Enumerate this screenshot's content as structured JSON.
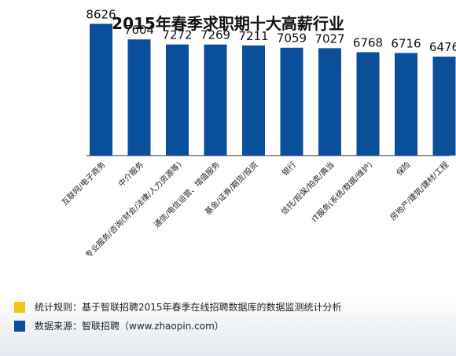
{
  "chart_data": {
    "type": "bar",
    "title": "2015年春季求职期十大高薪行业",
    "categories": [
      "互联网/电子商务",
      "中介服务",
      "专业服务/咨询(财会/法律/人力资源等)",
      "通信/电信运营、增值服务",
      "基金/证券/期货/投资",
      "银行",
      "信托/担保/拍卖/典当",
      "IT服务(系统/数据/维护)",
      "保险",
      "房地产/建筑/建材/工程"
    ],
    "values": [
      8626,
      7604,
      7272,
      7269,
      7211,
      7059,
      7027,
      6768,
      6716,
      6476
    ],
    "ylim": [
      0,
      9000
    ],
    "grid": false,
    "bar_color": "#0a4f9a"
  },
  "legend": [
    {
      "text": "统计规则：基于智联招聘2015年春季在线招聘数据库的数据监测统计分析",
      "color": "#f3c318"
    },
    {
      "text": "数据来源：智联招聘（www.zhaopin.com）",
      "color": "#0a4f9a"
    }
  ]
}
